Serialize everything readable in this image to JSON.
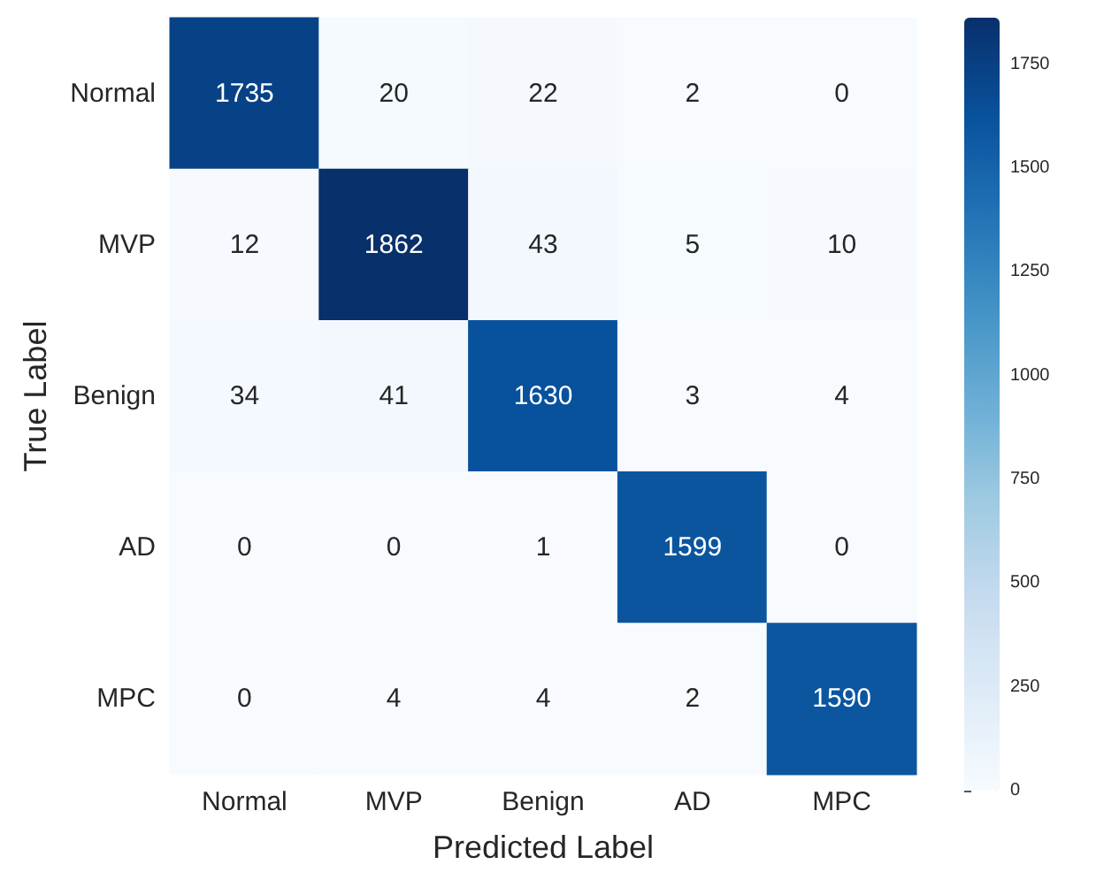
{
  "chart_data": {
    "type": "heatmap",
    "xlabel": "Predicted Label",
    "ylabel": "True Label",
    "categories": [
      "Normal",
      "MVP",
      "Benign",
      "AD",
      "MPC"
    ],
    "y_categories": [
      "Normal",
      "MVP",
      "Benign",
      "AD",
      "MPC"
    ],
    "cells": [
      [
        1735,
        20,
        22,
        2,
        0
      ],
      [
        12,
        1862,
        43,
        5,
        10
      ],
      [
        34,
        41,
        1630,
        3,
        4
      ],
      [
        0,
        0,
        1,
        1599,
        0
      ],
      [
        0,
        4,
        4,
        2,
        1590
      ]
    ],
    "data_labels": true,
    "clim": [
      0,
      1862
    ],
    "cticks": [
      0,
      250,
      500,
      750,
      1000,
      1250,
      1500,
      1750
    ]
  }
}
